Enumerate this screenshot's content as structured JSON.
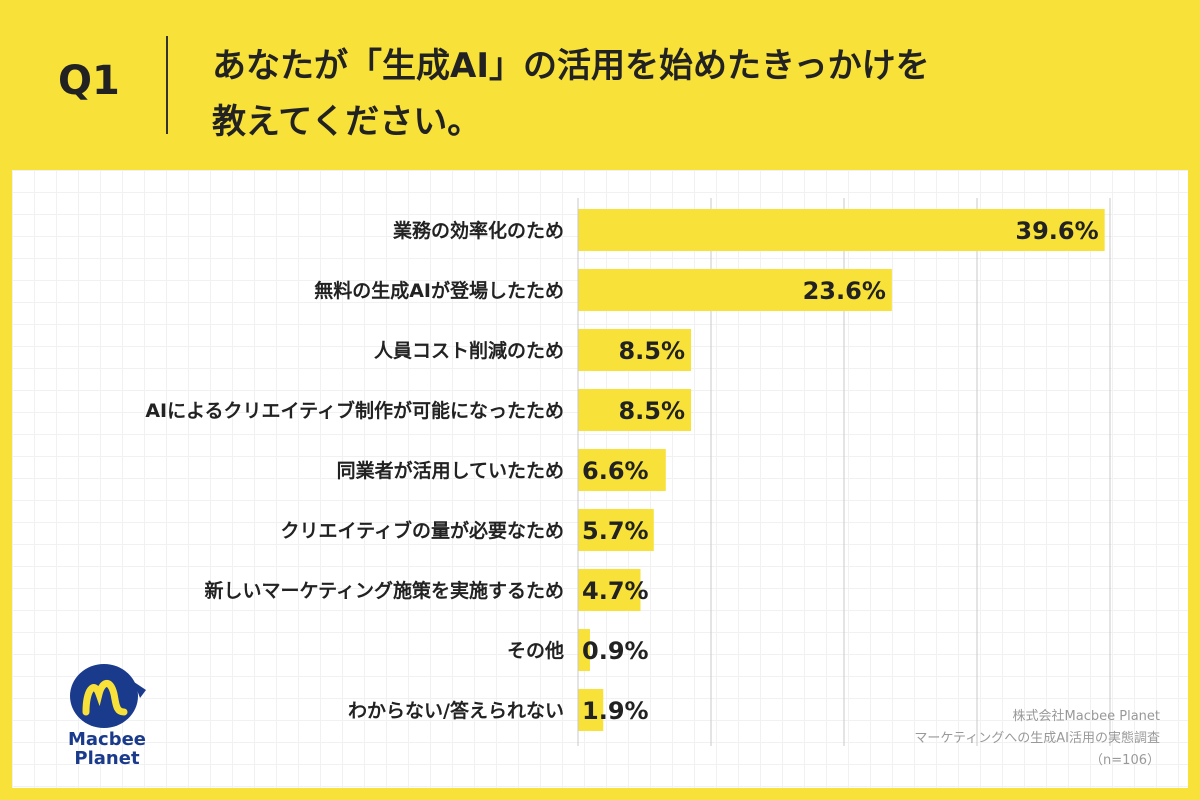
{
  "header": {
    "q_label": "Q1",
    "question_line1": "あなたが「生成AI」の活用を始めたきっかけを",
    "question_line2": "教えてください。"
  },
  "chart_data": {
    "type": "bar",
    "orientation": "horizontal",
    "categories": [
      "業務の効率化のため",
      "無料の生成AIが登場したため",
      "人員コスト削減のため",
      "AIによるクリエイティブ制作が可能になったため",
      "同業者が活用していたため",
      "クリエイティブの量が必要なため",
      "新しいマーケティング施策を実施するため",
      "その他",
      "わからない/答えられない"
    ],
    "values": [
      39.6,
      23.6,
      8.5,
      8.5,
      6.6,
      5.7,
      4.7,
      0.9,
      1.9
    ],
    "value_labels": [
      "39.6%",
      "23.6%",
      "8.5%",
      "8.5%",
      "6.6%",
      "5.7%",
      "4.7%",
      "0.9%",
      "1.9%"
    ],
    "xlim": [
      0,
      40
    ],
    "grid": true,
    "bar_color": "#f8e23a"
  },
  "logo": {
    "line1": "Macbee",
    "line2": "Planet"
  },
  "source": {
    "line1": "株式会社Macbee Planet",
    "line2": "マーケティングへの生成AI活用の実態調査",
    "line3": "（n=106）"
  },
  "colors": {
    "background": "#f8e23a",
    "logo_blue": "#1a3a8c",
    "logo_yellow": "#f8e23a"
  }
}
